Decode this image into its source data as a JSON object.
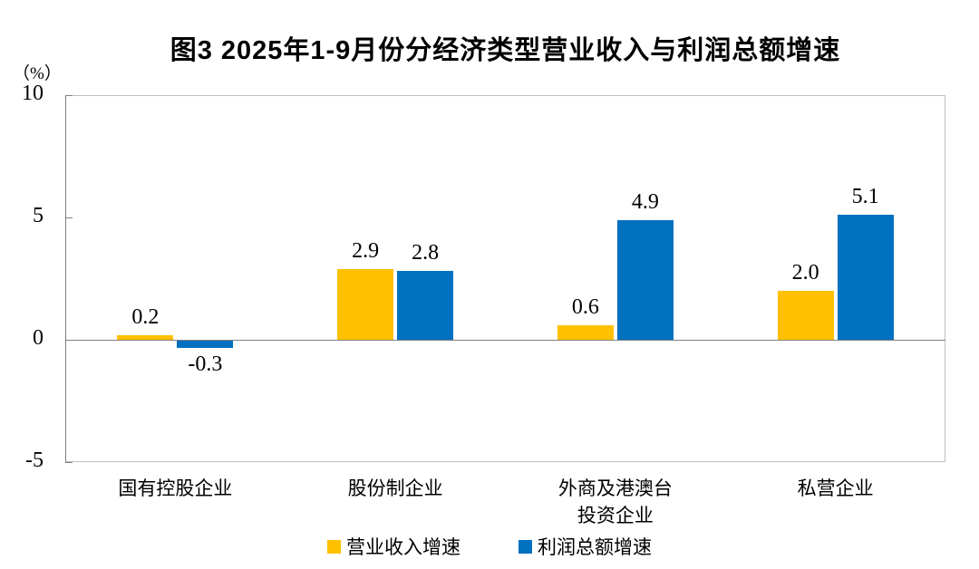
{
  "title": "图3 2025年1-9月份分经济类型营业收入与利润总额增速",
  "unit_label": "（%）",
  "chart_data": {
    "type": "bar",
    "title": "图3 2025年1-9月份分经济类型营业收入与利润总额增速",
    "ylabel": "（%）",
    "categories": [
      "国有控股企业",
      "股份制企业",
      "外商及港澳台\n投资企业",
      "私营企业"
    ],
    "series": [
      {
        "name": "营业收入增速",
        "color": "#FFC000",
        "values": [
          0.2,
          2.9,
          0.6,
          2.0
        ]
      },
      {
        "name": "利润总额增速",
        "color": "#0070C0",
        "values": [
          -0.3,
          2.8,
          4.9,
          5.1
        ]
      }
    ],
    "ylim": [
      -5,
      10
    ],
    "yticks": [
      10,
      5,
      0,
      -5
    ],
    "grid": false,
    "zero_line": true,
    "legend_position": "bottom",
    "axis_color": "#7f7f7f",
    "border_color": "#bfbfbf"
  }
}
